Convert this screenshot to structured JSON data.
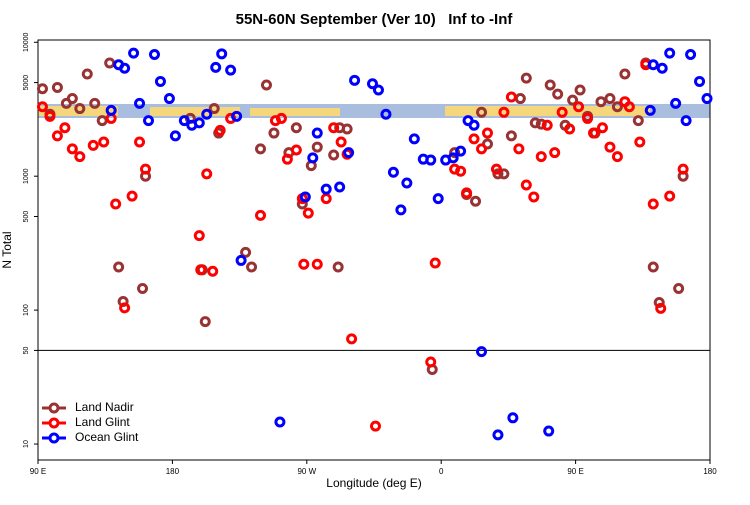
{
  "chart_data": {
    "type": "scatter",
    "title": "55N-60N September (Ver 10)   Inf to -Inf",
    "x_label": "Longitude (deg E)",
    "y_label": "N Total",
    "xlim": [
      90,
      540
    ],
    "ylim": [
      7.6,
      10400
    ],
    "log_y": true,
    "xticks": [
      {
        "value": 90,
        "label": "90 E"
      },
      180,
      {
        "value": 270,
        "label": "90 W"
      },
      {
        "value": 360,
        "label": "0"
      },
      {
        "value": 450,
        "label": "90 E"
      },
      {
        "value": 540,
        "label": "180"
      }
    ],
    "yticks": [
      10,
      50,
      100,
      500,
      1000,
      5000,
      10000
    ],
    "hline": 50,
    "legend": "lower left",
    "series": [
      {
        "name": "Land Nadir",
        "color": "#993333",
        "x": [
          93,
          98,
          103,
          109,
          113,
          118,
          123,
          128,
          133,
          138,
          144,
          147,
          160,
          162,
          192,
          200,
          202,
          208,
          211,
          229,
          233,
          239,
          243,
          248,
          258,
          263,
          267,
          273,
          277,
          291,
          288,
          292,
          297,
          354,
          369,
          377,
          383,
          387,
          391,
          398,
          402,
          407,
          413,
          417,
          423,
          427,
          433,
          438,
          443,
          448,
          453,
          458,
          463,
          467,
          473,
          478,
          483,
          492,
          497,
          502,
          506,
          519,
          522
        ],
        "values": [
          4500,
          2900,
          4600,
          3500,
          3800,
          3200,
          5800,
          3500,
          2600,
          7000,
          210,
          116,
          145,
          1000,
          2700,
          200,
          82,
          3200,
          2100,
          270,
          210,
          1600,
          4800,
          2100,
          1500,
          2300,
          620,
          1200,
          1650,
          210,
          1440,
          2300,
          2250,
          36,
          1500,
          730,
          650,
          3000,
          1740,
          1040,
          1040,
          2000,
          3800,
          5400,
          2500,
          2450,
          4800,
          4100,
          2400,
          3700,
          4400,
          2800,
          2100,
          3600,
          3800,
          3300,
          5800,
          2600,
          7000,
          210,
          114,
          145,
          1000
        ]
      },
      {
        "name": "Land Glint",
        "color": "#ff0000",
        "x": [
          93,
          98,
          103,
          108,
          113,
          118,
          127,
          134,
          139,
          142,
          148,
          153,
          158,
          162,
          198,
          199,
          203,
          207,
          212,
          219,
          239,
          249,
          253,
          257,
          263,
          267,
          271,
          268,
          277,
          283,
          288,
          293,
          297,
          300,
          316,
          353,
          356,
          369,
          373,
          377,
          382,
          387,
          391,
          397,
          402,
          407,
          412,
          417,
          422,
          427,
          431,
          436,
          441,
          446,
          452,
          458,
          462,
          468,
          473,
          478,
          483,
          486,
          493,
          497,
          502,
          507,
          513,
          522
        ],
        "values": [
          3300,
          2800,
          2000,
          2300,
          1600,
          1400,
          1700,
          1800,
          2700,
          620,
          104,
          710,
          1800,
          1130,
          360,
          200,
          1040,
          195,
          2200,
          2700,
          510,
          2600,
          2700,
          1340,
          1570,
          680,
          530,
          220,
          220,
          680,
          2300,
          1800,
          1460,
          61,
          13.6,
          41,
          225,
          1130,
          1090,
          750,
          1900,
          1600,
          2100,
          1130,
          3000,
          3900,
          1600,
          860,
          700,
          1400,
          2400,
          1500,
          3000,
          2250,
          3300,
          2700,
          2100,
          2300,
          1650,
          1400,
          3600,
          3300,
          1800,
          6800,
          620,
          103,
          710,
          1130
        ]
      },
      {
        "name": "Ocean Glint",
        "color": "#0000ff",
        "x": [
          139,
          144,
          148,
          154,
          158,
          164,
          168,
          172,
          178,
          182,
          188,
          193,
          198,
          203,
          209,
          213,
          219,
          223,
          226,
          252,
          269,
          274,
          277,
          283,
          292,
          298,
          302,
          314,
          318,
          323,
          328,
          333,
          337,
          342,
          348,
          353,
          358,
          363,
          368,
          373,
          378,
          382,
          387,
          398,
          408,
          432,
          500,
          502,
          508,
          513,
          517,
          524,
          527,
          533,
          538
        ],
        "values": [
          3100,
          6800,
          6400,
          8300,
          3500,
          2600,
          8100,
          5100,
          3800,
          2000,
          2600,
          2400,
          2500,
          2900,
          6500,
          8200,
          6200,
          2800,
          235,
          14.6,
          700,
          1370,
          2100,
          800,
          830,
          1500,
          5200,
          4900,
          4400,
          2900,
          1070,
          560,
          890,
          1900,
          1340,
          1320,
          680,
          1320,
          1370,
          1540,
          2600,
          2400,
          49,
          11.7,
          15.7,
          12.5,
          3100,
          6800,
          6400,
          8300,
          3500,
          2600,
          8100,
          5100,
          3800
        ]
      }
    ]
  }
}
